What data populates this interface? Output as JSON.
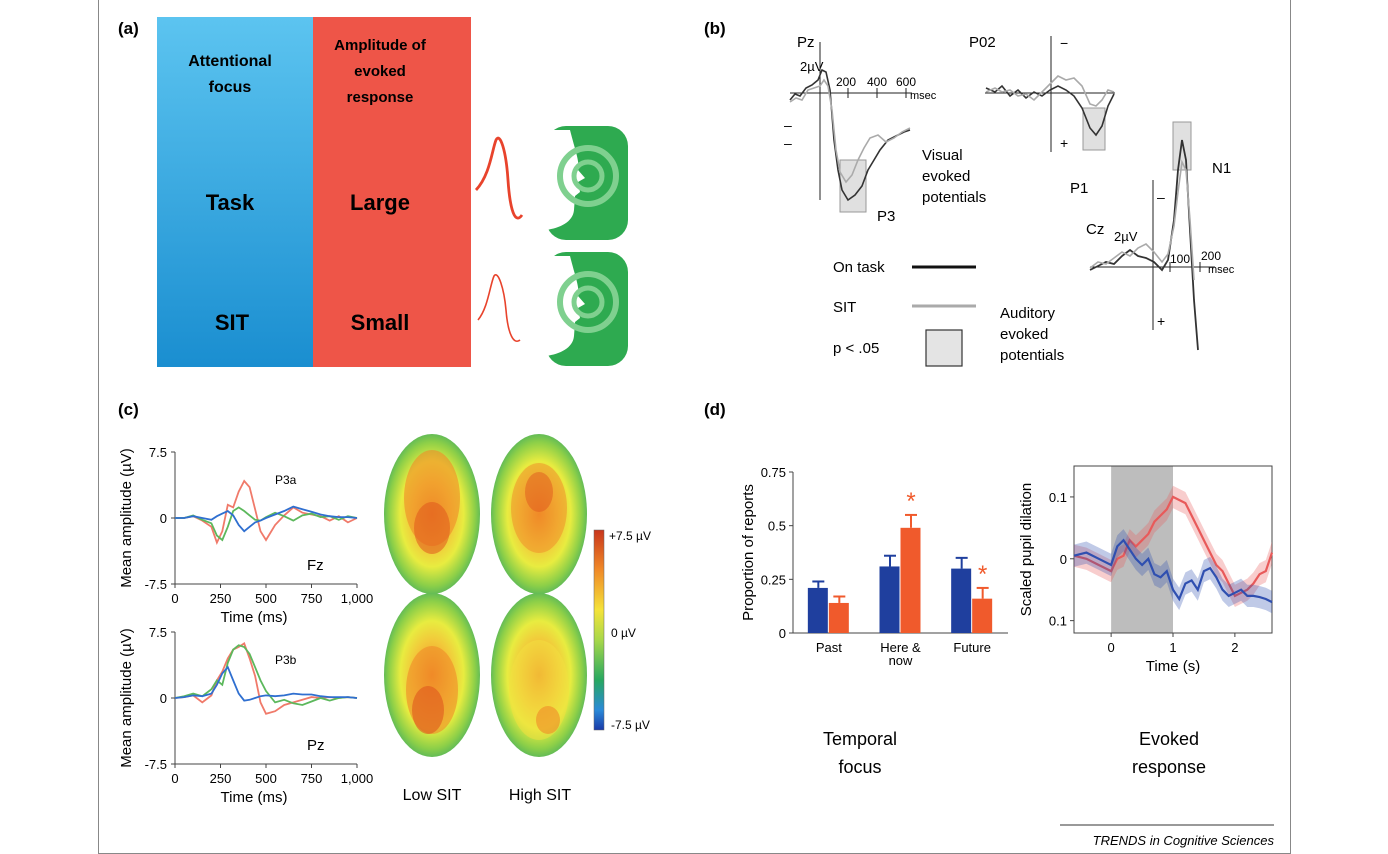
{
  "footer": "TRENDS in Cognitive Sciences",
  "panel_a": {
    "label": "(a)",
    "col1_header": [
      "Attentional",
      "focus"
    ],
    "col2_header": [
      "Amplitude of",
      "evoked",
      "response"
    ],
    "row1": [
      "Task",
      "Large"
    ],
    "row2": [
      "SIT",
      "Small"
    ],
    "colors": {
      "blue_top": "#5cc4f0",
      "blue_bottom": "#1a8ed0",
      "red": "#ee5548",
      "head_green": "#2eaa50",
      "wave": "#e8432c"
    }
  },
  "panel_b": {
    "label": "(b)",
    "pz": {
      "site": "Pz",
      "scale": "2µV",
      "ticks": [
        "200",
        "400",
        "600"
      ],
      "unit": "msec",
      "component": "P3",
      "caption": [
        "Visual",
        "evoked",
        "potentials"
      ]
    },
    "po2": {
      "site": "P02",
      "component": "P1",
      "minus": "−",
      "plus": "+"
    },
    "cz": {
      "site": "Cz",
      "scale": "2µV",
      "ticks": [
        "100",
        "200"
      ],
      "unit": "msec",
      "component": "N1",
      "caption": [
        "Auditory",
        "evoked",
        "potentials"
      ]
    },
    "legend": {
      "on_task": "On task",
      "sit": "SIT",
      "sig": "p < .05"
    },
    "plus_minus": {
      "minus1": "–",
      "minus2": "–",
      "plus": "+"
    }
  },
  "panel_c": {
    "label": "(c)",
    "ylabel": "Mean amplitude (µV)",
    "xlabel": "Time (ms)",
    "chart_data": [
      {
        "type": "line",
        "site": "Fz",
        "component": "P3a",
        "x": [
          0,
          50,
          100,
          150,
          200,
          230,
          260,
          290,
          320,
          350,
          380,
          410,
          440,
          470,
          500,
          550,
          600,
          650,
          700,
          750,
          800,
          850,
          900,
          950,
          1000
        ],
        "ylim": [
          -7.5,
          7.5
        ],
        "xlim": [
          0,
          1000
        ],
        "yticks": [
          "7.5",
          "0",
          "-7.5"
        ],
        "xticks": [
          "0",
          "250",
          "500",
          "750",
          "1,000"
        ],
        "series": [
          {
            "color": "#f07a6a",
            "values": [
              0,
              0,
              0.2,
              -0.3,
              -1.0,
              -2.8,
              -1.5,
              1.5,
              1.2,
              3.0,
              4.2,
              3.5,
              1.0,
              -1.5,
              -2.5,
              -0.8,
              0.3,
              1.2,
              0.6,
              0.4,
              0.2,
              -0.3,
              0.2,
              -0.5,
              0
            ]
          },
          {
            "color": "#5cb85c",
            "values": [
              0,
              0,
              0.3,
              -0.2,
              -0.6,
              -2.0,
              -2.5,
              -1.0,
              0.8,
              1.2,
              0.8,
              0.3,
              -0.2,
              -0.3,
              0.1,
              0.6,
              0.2,
              -0.3,
              0.3,
              0.5,
              0.1,
              0.2,
              -0.2,
              0.2,
              0
            ]
          },
          {
            "color": "#2f6fd0",
            "values": [
              0,
              0,
              0.2,
              0,
              -0.2,
              0.2,
              0.5,
              0.8,
              0.3,
              -0.8,
              -1.5,
              -1.0,
              -0.5,
              -0.3,
              0,
              0.4,
              0.8,
              1.3,
              1.0,
              0.7,
              0.4,
              0.2,
              0.1,
              0.1,
              0
            ]
          }
        ]
      },
      {
        "type": "line",
        "site": "Pz",
        "component": "P3b",
        "x": [
          0,
          50,
          100,
          150,
          200,
          230,
          260,
          290,
          320,
          350,
          380,
          410,
          440,
          470,
          500,
          550,
          600,
          650,
          700,
          750,
          800,
          850,
          900,
          950,
          1000
        ],
        "ylim": [
          -7.5,
          7.5
        ],
        "xlim": [
          0,
          1000
        ],
        "yticks": [
          "7.5",
          "0",
          "-7.5"
        ],
        "xticks": [
          "0",
          "250",
          "500",
          "750",
          "1,000"
        ],
        "series": [
          {
            "color": "#f07a6a",
            "values": [
              0,
              0.1,
              0.3,
              -0.5,
              0.3,
              2.0,
              3.0,
              4.5,
              5.5,
              5.8,
              6.2,
              4.5,
              2.5,
              -0.5,
              -1.8,
              -1.5,
              -0.8,
              -0.5,
              -0.2,
              0.1,
              0,
              0.1,
              0,
              0.1,
              0
            ]
          },
          {
            "color": "#5cb85c",
            "values": [
              0,
              0.2,
              0.5,
              0.2,
              1.0,
              2.0,
              1.5,
              4.0,
              5.5,
              6.0,
              5.8,
              5.0,
              3.5,
              2.0,
              0.8,
              -0.5,
              -0.2,
              -0.6,
              -0.8,
              -0.4,
              0,
              -0.3,
              0,
              0.1,
              0
            ]
          },
          {
            "color": "#2f6fd0",
            "values": [
              0,
              0.1,
              0.3,
              0.2,
              0.5,
              1.5,
              2.8,
              3.5,
              2.0,
              0.5,
              -0.3,
              -0.2,
              0,
              0.2,
              0.3,
              0.2,
              0.3,
              0.5,
              0.4,
              0.4,
              0.2,
              0.1,
              0.1,
              0.1,
              0
            ]
          }
        ]
      }
    ],
    "topomap": {
      "labels": [
        "Low SIT",
        "High SIT"
      ],
      "scale": [
        "+7.5 µV",
        "0 µV",
        "-7.5 µV"
      ]
    }
  },
  "panel_d": {
    "label": "(d)",
    "chart_data": [
      {
        "type": "bar",
        "ylabel": "Proportion of reports",
        "caption": [
          "Temporal",
          "focus"
        ],
        "categories": [
          "Past",
          "Here &\nnow",
          "Future"
        ],
        "ylim": [
          0,
          0.75
        ],
        "yticks": [
          "0.75",
          "0.5",
          "0.25",
          "0"
        ],
        "series": [
          {
            "color": "#1f3f9e",
            "values": [
              0.21,
              0.31,
              0.3
            ],
            "err": [
              0.03,
              0.05,
              0.05
            ]
          },
          {
            "color": "#f05a2c",
            "values": [
              0.14,
              0.49,
              0.16
            ],
            "err": [
              0.03,
              0.06,
              0.05
            ]
          }
        ],
        "significance": {
          "marker": "*",
          "categories": [
            1,
            2
          ]
        }
      },
      {
        "type": "line",
        "ylabel": "Scaled pupil dilation",
        "xlabel": "Time (s)",
        "caption": [
          "Evoked",
          "response"
        ],
        "xlim": [
          -0.6,
          2.6
        ],
        "ylim": [
          -0.12,
          0.15
        ],
        "xticks": [
          "0",
          "1",
          "2"
        ],
        "yticks": [
          "0.1",
          "0",
          "0.1"
        ],
        "shaded_interval": [
          0,
          1
        ],
        "x": [
          -0.6,
          -0.4,
          -0.2,
          0,
          0.1,
          0.2,
          0.3,
          0.4,
          0.5,
          0.6,
          0.7,
          0.8,
          0.9,
          1.0,
          1.1,
          1.2,
          1.3,
          1.4,
          1.5,
          1.6,
          1.7,
          1.8,
          1.9,
          2.0,
          2.1,
          2.2,
          2.3,
          2.4,
          2.5,
          2.6
        ],
        "series": [
          {
            "color": "#e85a5a",
            "values": [
              0.005,
              0.0,
              -0.01,
              -0.02,
              0.0,
              0.005,
              0.03,
              0.02,
              0.03,
              0.04,
              0.06,
              0.07,
              0.08,
              0.1,
              0.095,
              0.09,
              0.07,
              0.05,
              0.03,
              0.01,
              -0.01,
              -0.02,
              -0.04,
              -0.06,
              -0.055,
              -0.05,
              -0.04,
              -0.025,
              -0.02,
              0.01
            ]
          },
          {
            "color": "#2f4fb0",
            "values": [
              0.005,
              0.01,
              0.0,
              -0.01,
              0.02,
              0.03,
              0.015,
              0.0,
              -0.01,
              0.0,
              -0.025,
              -0.03,
              -0.02,
              -0.05,
              -0.065,
              -0.04,
              -0.035,
              -0.05,
              -0.02,
              -0.015,
              -0.03,
              -0.05,
              -0.06,
              -0.055,
              -0.05,
              -0.06,
              -0.06,
              -0.062,
              -0.065,
              -0.07
            ]
          }
        ]
      }
    ]
  }
}
